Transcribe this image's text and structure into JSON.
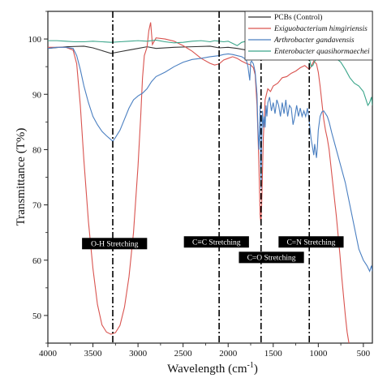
{
  "chart_data": {
    "type": "line",
    "xlabel": "Wavelength (cm",
    "xlabel_sup": "-1",
    "xlabel_close": ")",
    "ylabel": "Transmittance (T%)",
    "xlim": [
      4000,
      400
    ],
    "ylim": [
      45,
      105
    ],
    "xticks": [
      4000,
      3500,
      3000,
      2500,
      2000,
      1500,
      1000,
      500
    ],
    "yticks": [
      50,
      60,
      70,
      80,
      90,
      100
    ],
    "legend_position": "top-right",
    "series": [
      {
        "name": "PCBs (Control)",
        "italic": false,
        "color": "#333333",
        "points": [
          [
            4000,
            98.3
          ],
          [
            3800,
            98.6
          ],
          [
            3600,
            98.7
          ],
          [
            3500,
            98.4
          ],
          [
            3400,
            97.9
          ],
          [
            3300,
            97.4
          ],
          [
            3200,
            97.7
          ],
          [
            3100,
            98.0
          ],
          [
            3000,
            98.3
          ],
          [
            2900,
            98.6
          ],
          [
            2800,
            98.3
          ],
          [
            2600,
            98.5
          ],
          [
            2400,
            98.6
          ],
          [
            2200,
            98.7
          ],
          [
            2100,
            98.4
          ],
          [
            2000,
            98.5
          ],
          [
            1900,
            98.3
          ],
          [
            1800,
            98.0
          ],
          [
            1700,
            97.6
          ],
          [
            1650,
            96.5
          ],
          [
            1600,
            97.3
          ],
          [
            1500,
            98.0
          ],
          [
            1400,
            98.3
          ],
          [
            1300,
            98.5
          ],
          [
            1200,
            98.4
          ],
          [
            1100,
            98.0
          ],
          [
            1050,
            97.6
          ],
          [
            1000,
            98.0
          ],
          [
            900,
            98.2
          ],
          [
            800,
            97.4
          ],
          [
            700,
            98.6
          ],
          [
            600,
            99.2
          ],
          [
            550,
            98.1
          ],
          [
            500,
            99.0
          ],
          [
            470,
            97.0
          ],
          [
            450,
            97.8
          ],
          [
            430,
            98.5
          ],
          [
            400,
            97.4
          ]
        ]
      },
      {
        "name": "Exiguobacterium himgiriensis",
        "italic": true,
        "color": "#d9534f",
        "points": [
          [
            4000,
            98.5
          ],
          [
            3800,
            98.5
          ],
          [
            3720,
            98.0
          ],
          [
            3680,
            95.5
          ],
          [
            3640,
            88.0
          ],
          [
            3600,
            78.0
          ],
          [
            3550,
            67.0
          ],
          [
            3500,
            58.5
          ],
          [
            3450,
            52.0
          ],
          [
            3400,
            48.3
          ],
          [
            3350,
            47.0
          ],
          [
            3300,
            46.6
          ],
          [
            3250,
            46.9
          ],
          [
            3200,
            48.2
          ],
          [
            3150,
            51.5
          ],
          [
            3100,
            57.0
          ],
          [
            3050,
            65.0
          ],
          [
            3000,
            77.0
          ],
          [
            2970,
            86.0
          ],
          [
            2950,
            93.0
          ],
          [
            2930,
            97.0
          ],
          [
            2900,
            98.5
          ],
          [
            2880,
            101.5
          ],
          [
            2860,
            103.0
          ],
          [
            2840,
            99.0
          ],
          [
            2800,
            100.2
          ],
          [
            2700,
            100.0
          ],
          [
            2600,
            99.6
          ],
          [
            2500,
            98.8
          ],
          [
            2400,
            97.8
          ],
          [
            2300,
            96.5
          ],
          [
            2200,
            95.6
          ],
          [
            2150,
            95.3
          ],
          [
            2100,
            95.5
          ],
          [
            2050,
            96.2
          ],
          [
            2000,
            96.5
          ],
          [
            1950,
            96.8
          ],
          [
            1900,
            96.5
          ],
          [
            1850,
            96.0
          ],
          [
            1800,
            95.6
          ],
          [
            1750,
            95.3
          ],
          [
            1720,
            94.8
          ],
          [
            1700,
            93.5
          ],
          [
            1680,
            88.0
          ],
          [
            1660,
            78.0
          ],
          [
            1645,
            68.0
          ],
          [
            1635,
            66.5
          ],
          [
            1625,
            72.0
          ],
          [
            1610,
            82.0
          ],
          [
            1590,
            89.0
          ],
          [
            1560,
            91.0
          ],
          [
            1530,
            90.5
          ],
          [
            1500,
            91.5
          ],
          [
            1450,
            92.0
          ],
          [
            1400,
            93.0
          ],
          [
            1350,
            93.2
          ],
          [
            1300,
            93.8
          ],
          [
            1250,
            94.2
          ],
          [
            1200,
            94.8
          ],
          [
            1150,
            95.2
          ],
          [
            1100,
            94.5
          ],
          [
            1080,
            95.0
          ],
          [
            1050,
            96.0
          ],
          [
            1020,
            95.5
          ],
          [
            1000,
            94.0
          ],
          [
            980,
            91.5
          ],
          [
            960,
            88.5
          ],
          [
            940,
            85.5
          ],
          [
            920,
            83.5
          ],
          [
            900,
            82.0
          ],
          [
            880,
            80.0
          ],
          [
            860,
            77.0
          ],
          [
            840,
            74.0
          ],
          [
            820,
            71.0
          ],
          [
            800,
            68.0
          ],
          [
            780,
            64.5
          ],
          [
            760,
            61.0
          ],
          [
            740,
            57.0
          ],
          [
            720,
            53.5
          ],
          [
            700,
            50.0
          ],
          [
            680,
            47.0
          ],
          [
            660,
            45.0
          ],
          [
            640,
            43.0
          ]
        ]
      },
      {
        "name": "Arthrobacter gandavensis",
        "italic": true,
        "color": "#4a7fc1",
        "points": [
          [
            4000,
            98.3
          ],
          [
            3900,
            98.5
          ],
          [
            3800,
            98.5
          ],
          [
            3720,
            98.3
          ],
          [
            3680,
            97.0
          ],
          [
            3640,
            94.5
          ],
          [
            3600,
            91.5
          ],
          [
            3550,
            88.5
          ],
          [
            3500,
            86.0
          ],
          [
            3450,
            84.5
          ],
          [
            3400,
            83.3
          ],
          [
            3350,
            82.5
          ],
          [
            3300,
            81.8
          ],
          [
            3280,
            81.5
          ],
          [
            3250,
            82.2
          ],
          [
            3200,
            83.5
          ],
          [
            3150,
            85.5
          ],
          [
            3100,
            87.5
          ],
          [
            3050,
            89.0
          ],
          [
            3000,
            89.7
          ],
          [
            2950,
            90.2
          ],
          [
            2900,
            91.0
          ],
          [
            2850,
            92.3
          ],
          [
            2800,
            93.2
          ],
          [
            2700,
            94.0
          ],
          [
            2600,
            95.0
          ],
          [
            2500,
            95.8
          ],
          [
            2400,
            96.3
          ],
          [
            2300,
            96.5
          ],
          [
            2200,
            96.8
          ],
          [
            2100,
            97.0
          ],
          [
            2050,
            97.2
          ],
          [
            2000,
            97.3
          ],
          [
            1950,
            97.2
          ],
          [
            1900,
            97.0
          ],
          [
            1850,
            96.8
          ],
          [
            1800,
            96.3
          ],
          [
            1780,
            95.0
          ],
          [
            1760,
            92.5
          ],
          [
            1750,
            95.8
          ],
          [
            1740,
            96.0
          ],
          [
            1720,
            95.5
          ],
          [
            1700,
            94.0
          ],
          [
            1680,
            90.0
          ],
          [
            1670,
            84.0
          ],
          [
            1660,
            80.0
          ],
          [
            1650,
            84.0
          ],
          [
            1645,
            88.0
          ],
          [
            1640,
            78.0
          ],
          [
            1635,
            73.0
          ],
          [
            1630,
            80.0
          ],
          [
            1620,
            87.0
          ],
          [
            1610,
            84.0
          ],
          [
            1600,
            86.0
          ],
          [
            1590,
            84.0
          ],
          [
            1580,
            88.0
          ],
          [
            1570,
            86.0
          ],
          [
            1560,
            88.5
          ],
          [
            1540,
            89.5
          ],
          [
            1520,
            87.0
          ],
          [
            1500,
            88.5
          ],
          [
            1480,
            86.5
          ],
          [
            1460,
            89.0
          ],
          [
            1440,
            88.0
          ],
          [
            1420,
            86.0
          ],
          [
            1400,
            88.5
          ],
          [
            1380,
            86.5
          ],
          [
            1360,
            89.0
          ],
          [
            1340,
            86.0
          ],
          [
            1320,
            88.0
          ],
          [
            1300,
            87.5
          ],
          [
            1280,
            84.5
          ],
          [
            1260,
            86.0
          ],
          [
            1240,
            88.0
          ],
          [
            1220,
            86.0
          ],
          [
            1200,
            87.5
          ],
          [
            1180,
            86.0
          ],
          [
            1160,
            87.0
          ],
          [
            1140,
            86.0
          ],
          [
            1120,
            87.5
          ],
          [
            1100,
            85.0
          ],
          [
            1080,
            82.0
          ],
          [
            1060,
            80.0
          ],
          [
            1050,
            79.0
          ],
          [
            1040,
            81.0
          ],
          [
            1020,
            78.5
          ],
          [
            1010,
            80.5
          ],
          [
            1000,
            83.5
          ],
          [
            980,
            86.0
          ],
          [
            960,
            86.8
          ],
          [
            940,
            87.0
          ],
          [
            920,
            86.5
          ],
          [
            900,
            86.0
          ],
          [
            880,
            85.0
          ],
          [
            850,
            83.0
          ],
          [
            800,
            80.0
          ],
          [
            750,
            77.0
          ],
          [
            700,
            74.0
          ],
          [
            650,
            70.0
          ],
          [
            600,
            66.0
          ],
          [
            550,
            62.0
          ],
          [
            500,
            60.0
          ],
          [
            460,
            59.0
          ],
          [
            430,
            58.0
          ],
          [
            410,
            59.0
          ],
          [
            400,
            58.0
          ]
        ]
      },
      {
        "name": "Enterobacter quasihormaechei",
        "italic": true,
        "color": "#3aa58a",
        "points": [
          [
            4000,
            99.7
          ],
          [
            3900,
            99.7
          ],
          [
            3800,
            99.6
          ],
          [
            3700,
            99.5
          ],
          [
            3600,
            99.5
          ],
          [
            3500,
            99.6
          ],
          [
            3400,
            99.5
          ],
          [
            3300,
            99.4
          ],
          [
            3200,
            99.5
          ],
          [
            3100,
            99.6
          ],
          [
            3000,
            99.7
          ],
          [
            2900,
            99.6
          ],
          [
            2800,
            99.8
          ],
          [
            2700,
            99.5
          ],
          [
            2600,
            99.3
          ],
          [
            2500,
            99.4
          ],
          [
            2400,
            99.6
          ],
          [
            2300,
            99.7
          ],
          [
            2200,
            99.5
          ],
          [
            2150,
            99.7
          ],
          [
            2100,
            99.6
          ],
          [
            2050,
            99.5
          ],
          [
            2000,
            99.6
          ],
          [
            1950,
            99.2
          ],
          [
            1900,
            98.8
          ],
          [
            1850,
            99.4
          ],
          [
            1800,
            99.6
          ],
          [
            1750,
            99.5
          ],
          [
            1700,
            99.3
          ],
          [
            1650,
            99.0
          ],
          [
            1600,
            98.8
          ],
          [
            1550,
            99.0
          ],
          [
            1500,
            99.4
          ],
          [
            1450,
            99.6
          ],
          [
            1400,
            99.7
          ],
          [
            1350,
            99.6
          ],
          [
            1300,
            99.4
          ],
          [
            1250,
            99.2
          ],
          [
            1200,
            99.3
          ],
          [
            1150,
            98.7
          ],
          [
            1100,
            96.5
          ],
          [
            1080,
            95.0
          ],
          [
            1060,
            95.2
          ],
          [
            1040,
            96.0
          ],
          [
            1000,
            96.8
          ],
          [
            950,
            97.2
          ],
          [
            900,
            97.5
          ],
          [
            850,
            97.0
          ],
          [
            800,
            96.5
          ],
          [
            750,
            95.8
          ],
          [
            700,
            94.5
          ],
          [
            650,
            93.0
          ],
          [
            600,
            92.0
          ],
          [
            550,
            91.5
          ],
          [
            500,
            90.5
          ],
          [
            470,
            89.0
          ],
          [
            450,
            88.0
          ],
          [
            430,
            88.5
          ],
          [
            410,
            89.5
          ],
          [
            400,
            88.0
          ]
        ]
      }
    ],
    "vlines": [
      3280,
      2100,
      1635,
      1100
    ],
    "annotations": [
      {
        "text": "O-H Stretching",
        "x": 3260,
        "y": 63
      },
      {
        "text": "C≡C Stretching",
        "x": 2130,
        "y": 63.3
      },
      {
        "text": "C=O Stretching",
        "x": 1520,
        "y": 60.5
      },
      {
        "text": "C=N Stretching",
        "x": 1080,
        "y": 63.3
      }
    ]
  }
}
